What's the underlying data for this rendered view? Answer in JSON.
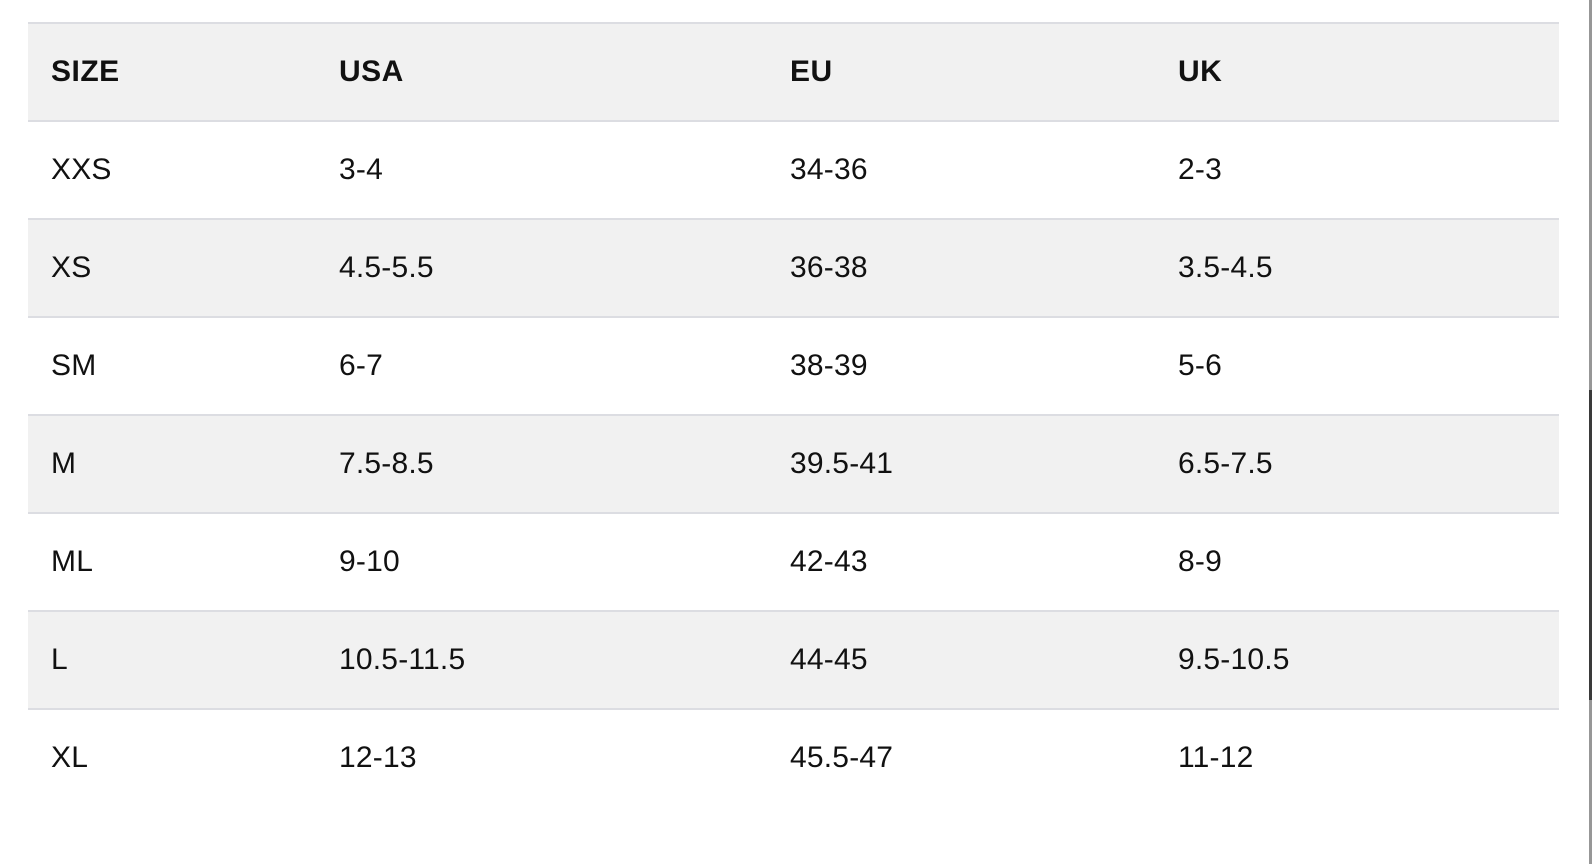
{
  "table": {
    "columns": {
      "size": "SIZE",
      "usa": "USA",
      "eu": "EU",
      "uk": "UK"
    },
    "rows": [
      {
        "size": "XXS",
        "usa": "3-4",
        "eu": "34-36",
        "uk": "2-3"
      },
      {
        "size": "XS",
        "usa": "4.5-5.5",
        "eu": "36-38",
        "uk": "3.5-4.5"
      },
      {
        "size": "SM",
        "usa": "6-7",
        "eu": "38-39",
        "uk": "5-6"
      },
      {
        "size": "M",
        "usa": "7.5-8.5",
        "eu": "39.5-41",
        "uk": "6.5-7.5"
      },
      {
        "size": "ML",
        "usa": "9-10",
        "eu": "42-43",
        "uk": "8-9"
      },
      {
        "size": "L",
        "usa": "10.5-11.5",
        "eu": "44-45",
        "uk": "9.5-10.5"
      },
      {
        "size": "XL",
        "usa": "12-13",
        "eu": "45.5-47",
        "uk": "11-12"
      }
    ]
  },
  "colors": {
    "alt_row_background": "#f1f1f1",
    "row_border": "#dcdde2",
    "text": "#111111",
    "scrollbar_track": "#979797",
    "scrollbar_thumb": "#3a3a3a"
  }
}
